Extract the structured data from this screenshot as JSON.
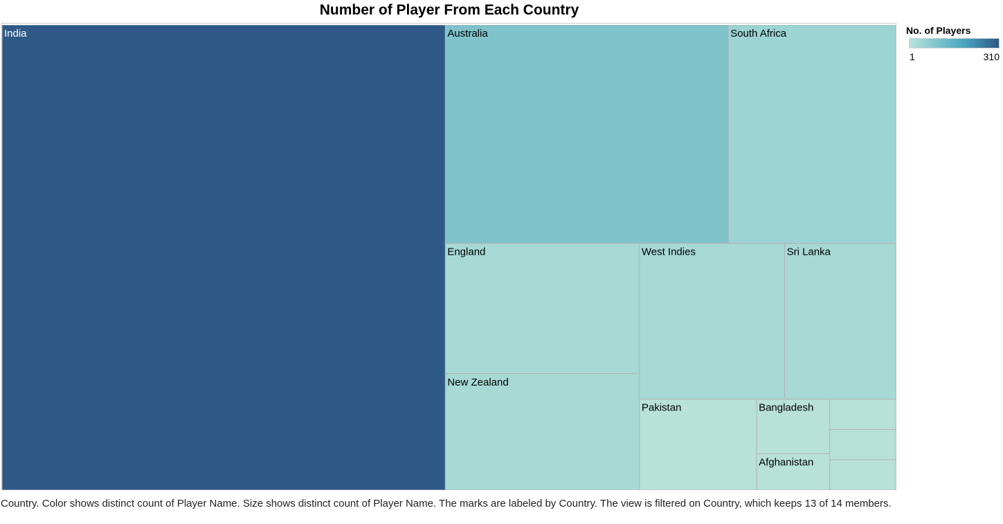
{
  "chart_data": {
    "type": "treemap",
    "title": "Number of Player From Each Country",
    "size_measure": "distinct count of Player Name",
    "color_measure": "distinct count of Player Name",
    "color_range": [
      "#b8e2d8",
      "#2d5986"
    ],
    "legend": {
      "title": "No. of Players",
      "min_label": "1",
      "max_label": "310",
      "placement": "top-right"
    },
    "items": [
      {
        "label": "India",
        "value": 310,
        "color": "#2e5986",
        "label_color": "#ffffff"
      },
      {
        "label": "Australia",
        "value": 93,
        "color": "#80c3ca",
        "label_color": "#000000"
      },
      {
        "label": "South Africa",
        "value": 55,
        "color": "#9cd3d3",
        "label_color": "#000000"
      },
      {
        "label": "England",
        "value": 38,
        "color": "#a7d9d5",
        "label_color": "#000000"
      },
      {
        "label": "New Zealand",
        "value": 34,
        "color": "#a7d9d5",
        "label_color": "#000000"
      },
      {
        "label": "West Indies",
        "value": 34,
        "color": "#a7d9d5",
        "label_color": "#000000"
      },
      {
        "label": "Sri Lanka",
        "value": 26,
        "color": "#a7d9d5",
        "label_color": "#000000"
      },
      {
        "label": "Pakistan",
        "value": 16,
        "color": "#b8e2d8",
        "label_color": "#000000"
      },
      {
        "label": "Bangladesh",
        "value": 6,
        "color": "#b8e2d8",
        "label_color": "#000000"
      },
      {
        "label": "Afghanistan",
        "value": 4,
        "color": "#b8e2d8",
        "label_color": "#000000"
      },
      {
        "label": "",
        "value": 3,
        "color": "#b8e2d8",
        "label_color": "#000000"
      },
      {
        "label": "",
        "value": 3,
        "color": "#b8e2d8",
        "label_color": "#000000"
      },
      {
        "label": "",
        "value": 3,
        "color": "#b8e2d8",
        "label_color": "#000000"
      }
    ]
  },
  "caption": "Country.  Color shows distinct count of Player Name.  Size shows distinct count of Player Name.  The marks are labeled by Country. The view is filtered on Country, which keeps 13 of 14 members."
}
